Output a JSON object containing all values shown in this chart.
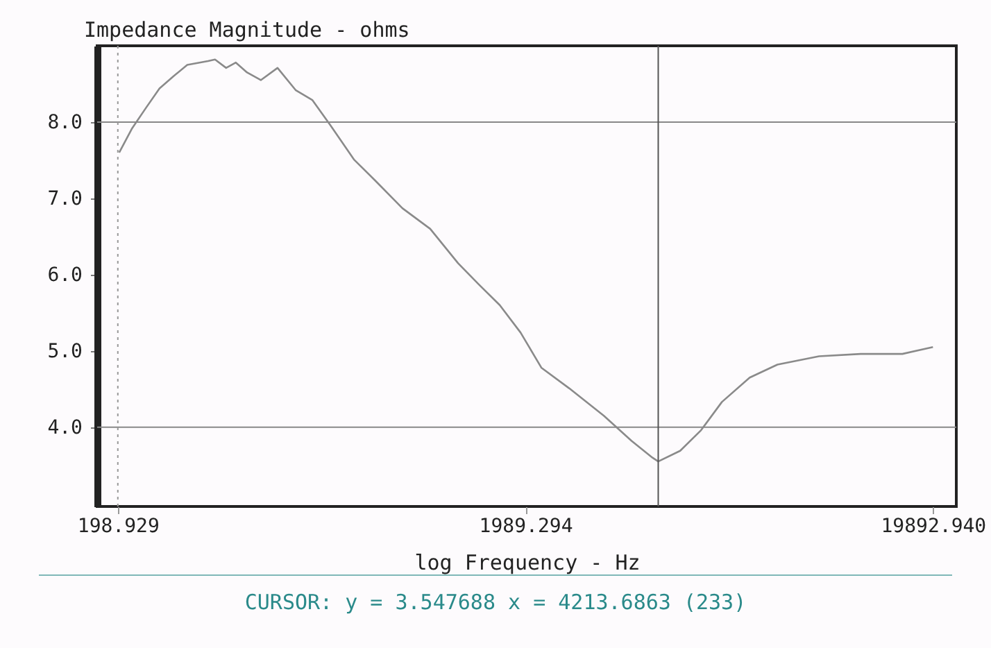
{
  "chart_data": {
    "type": "line",
    "ylabel": "Impedance Magnitude - ohms",
    "xlabel": "log Frequency - Hz",
    "log": "x",
    "x": [
      200.5,
      215.2,
      232.8,
      251.7,
      272.3,
      294.5,
      331.2,
      344.5,
      366.8,
      387.5,
      412.8,
      446.2,
      490.4,
      543.1,
      596.7,
      660.6,
      755,
      849,
      993,
      1162,
      1360,
      1530,
      1721,
      1936,
      2177,
      2547,
      3099,
      3625,
      4079,
      4213.6863,
      4770,
      5367,
      6038,
      7064,
      8264,
      10456,
      13229,
      16738,
      19892.94
    ],
    "series": [
      {
        "color": "#8a8a8a",
        "values": [
          7.6,
          7.91,
          8.18,
          8.44,
          8.6,
          8.75,
          8.8,
          8.82,
          8.71,
          8.78,
          8.65,
          8.55,
          8.71,
          8.42,
          8.29,
          7.96,
          7.51,
          7.24,
          6.87,
          6.6,
          6.15,
          5.87,
          5.6,
          5.24,
          4.78,
          4.51,
          4.15,
          3.82,
          3.6,
          3.55,
          3.69,
          3.96,
          4.33,
          4.65,
          4.82,
          4.93,
          4.96,
          4.96,
          5.05
        ]
      }
    ],
    "xlim": [
      177,
      22700
    ],
    "xticks": [
      198.929,
      1989.294,
      {
        "value": 19892.94,
        "label": "19892.940"
      }
    ],
    "ylim": [
      2.96,
      9.0
    ],
    "yticks": [
      {
        "value": 4,
        "label": "4.0"
      },
      {
        "value": 5,
        "label": "5.0"
      },
      {
        "value": 6,
        "label": "6.0"
      },
      {
        "value": 7,
        "label": "7.0"
      },
      {
        "value": 8,
        "label": "8.0"
      }
    ],
    "ref_lines": [
      {
        "axis": "y",
        "value": 8,
        "color": "#888888"
      },
      {
        "axis": "y",
        "value": 4,
        "color": "#888888"
      },
      {
        "axis": "x",
        "value": 198.929,
        "color": "#999999",
        "line_style": "dotted"
      },
      {
        "axis": "x",
        "value": 4213.6863,
        "color": "#555555"
      }
    ],
    "annotations": [
      "CURSOR: y = 3.547688 x = 4213.6863 (233)"
    ],
    "grid": false,
    "marker": "none",
    "line_style": "solid"
  }
}
